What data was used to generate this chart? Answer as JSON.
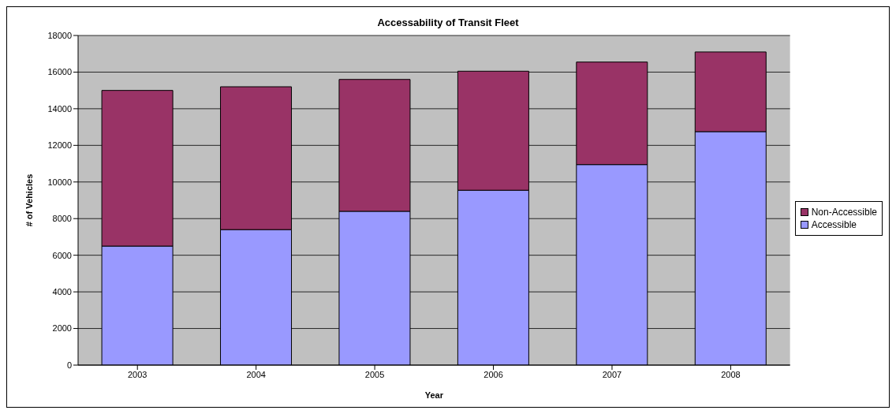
{
  "chart_data": {
    "type": "bar",
    "title": "Accessability of Transit Fleet",
    "xlabel": "Year",
    "ylabel": "# of Vehicles",
    "categories": [
      "2003",
      "2004",
      "2005",
      "2006",
      "2007",
      "2008"
    ],
    "stacked": true,
    "series": [
      {
        "name": "Accessible",
        "color": "#9999ff",
        "values": [
          6500,
          7400,
          8400,
          9550,
          10950,
          12750
        ]
      },
      {
        "name": "Non-Accessible",
        "color": "#993366",
        "values": [
          8500,
          7800,
          7200,
          6500,
          5600,
          4350
        ]
      }
    ],
    "ylim": [
      0,
      18000
    ],
    "yticks": [
      0,
      2000,
      4000,
      6000,
      8000,
      10000,
      12000,
      14000,
      16000,
      18000
    ],
    "grid": "y",
    "legend": "right"
  }
}
